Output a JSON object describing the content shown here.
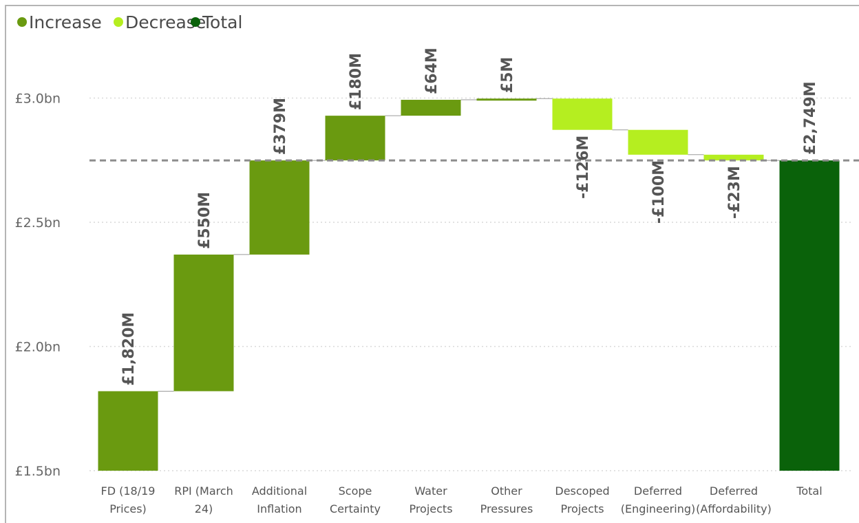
{
  "chart_data": {
    "type": "waterfall",
    "legend": {
      "placement": "top-left",
      "items": [
        {
          "name": "Increase",
          "color": "#6a9a10"
        },
        {
          "name": "Decrease",
          "color": "#b5ee20"
        },
        {
          "name": "Total",
          "color": "#0a620a"
        }
      ]
    },
    "yaxis": {
      "min": 1.5,
      "max": 3.15,
      "ticks": [
        {
          "value": 1.5,
          "label": "£1.5bn"
        },
        {
          "value": 2.0,
          "label": "£2.0bn"
        },
        {
          "value": 2.5,
          "label": "£2.5bn"
        },
        {
          "value": 3.0,
          "label": "£3.0bn"
        }
      ],
      "grid": true
    },
    "reference_line": {
      "value": 2.749,
      "style": "dashed"
    },
    "steps": [
      {
        "category": [
          "FD (18/19",
          "Prices)"
        ],
        "value": 1.82,
        "kind": "increase",
        "label": "£1,820M"
      },
      {
        "category": [
          "RPI (March",
          "24)"
        ],
        "value": 0.55,
        "kind": "increase",
        "label": "£550M"
      },
      {
        "category": [
          "Additional",
          "Inflation"
        ],
        "value": 0.379,
        "kind": "increase",
        "label": "£379M"
      },
      {
        "category": [
          "Scope",
          "Certainty"
        ],
        "value": 0.18,
        "kind": "increase",
        "label": "£180M"
      },
      {
        "category": [
          "Water",
          "Projects"
        ],
        "value": 0.064,
        "kind": "increase",
        "label": "£64M"
      },
      {
        "category": [
          "Other",
          "Pressures"
        ],
        "value": 0.005,
        "kind": "increase",
        "label": "£5M"
      },
      {
        "category": [
          "Descoped",
          "Projects"
        ],
        "value": -0.126,
        "kind": "decrease",
        "label": "-£126M"
      },
      {
        "category": [
          "Deferred",
          "(Engineering)"
        ],
        "value": -0.1,
        "kind": "decrease",
        "label": "-£100M"
      },
      {
        "category": [
          "Deferred",
          "(Affordability)"
        ],
        "value": -0.023,
        "kind": "decrease",
        "label": "-£23M"
      },
      {
        "category": [
          "Total"
        ],
        "value": 2.749,
        "kind": "total",
        "label": "£2,749M"
      }
    ]
  }
}
